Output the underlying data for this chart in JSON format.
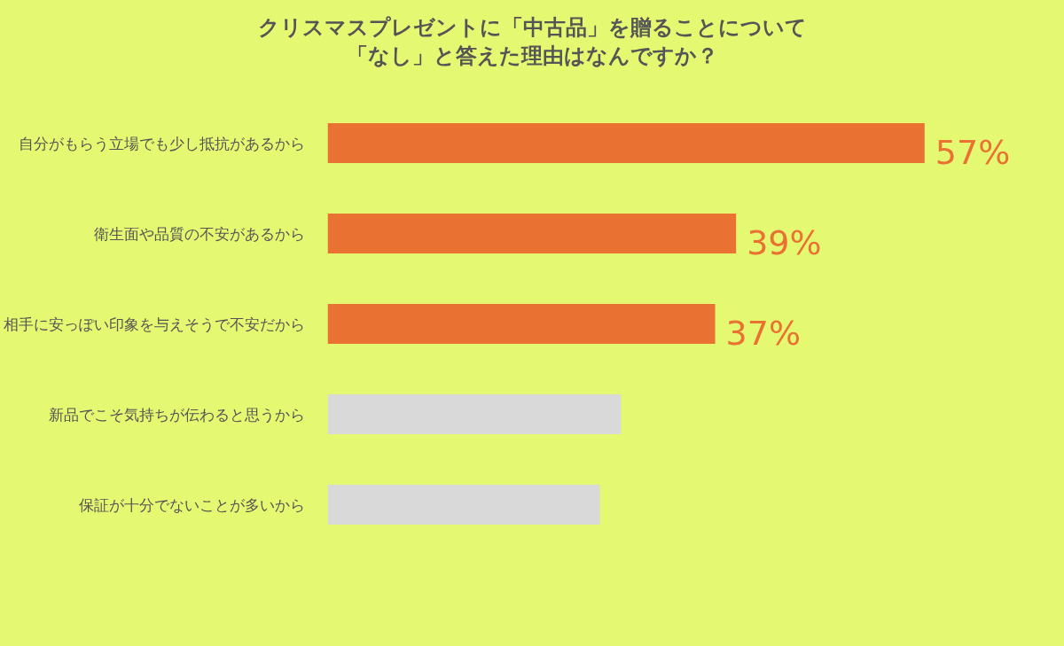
{
  "chart_data": {
    "type": "bar",
    "orientation": "horizontal",
    "title": "クリスマスプレゼントに「中古品」を贈ることについて「なし」と答えた理由はなんですか？",
    "categories": [
      "自分がもらう立場でも少し抵抗があるから",
      "衛生面や品質の不安があるから",
      "相手に安っぽい印象を与えそうで不安だから",
      "新品でこそ気持ちが伝わると思うから",
      "保証が十分でないことが多いから"
    ],
    "values": [
      57,
      39,
      37,
      28,
      26
    ],
    "colors": [
      "#e97132",
      "#e97132",
      "#e97132",
      "#d9d9d9",
      "#d9d9d9"
    ],
    "value_labels": [
      "57%",
      "39%",
      "37%",
      null,
      null
    ],
    "tick_labels": "y"
  }
}
